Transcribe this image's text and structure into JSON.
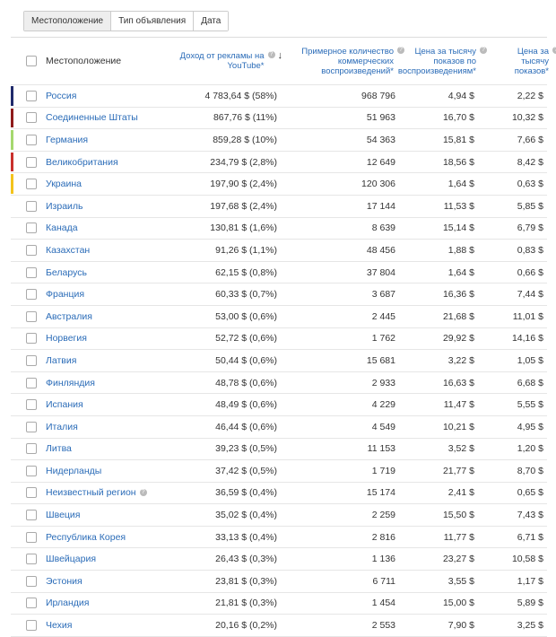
{
  "tabs": [
    "Местоположение",
    "Тип объявления",
    "Дата"
  ],
  "columns": [
    "Местоположение",
    "Доход от рекламы на YouTube*",
    "Примерное количество коммерческих воспроизведений*",
    "Цена за тысячу показов по воспроизведениям*",
    "Цена за тысячу показов*"
  ],
  "rows": [
    {
      "name": "Россия",
      "color": "#1f2a6b",
      "cells": [
        "4 783,64 $ (58%)",
        "968 796",
        "4,94 $",
        "2,22 $"
      ]
    },
    {
      "name": "Соединенные Штаты",
      "color": "#8e1b1b",
      "cells": [
        "867,76 $ (11%)",
        "51 963",
        "16,70 $",
        "10,32 $"
      ]
    },
    {
      "name": "Германия",
      "color": "#a5d86e",
      "cells": [
        "859,28 $ (10%)",
        "54 363",
        "15,81 $",
        "7,66 $"
      ]
    },
    {
      "name": "Великобритания",
      "color": "#c9302c",
      "cells": [
        "234,79 $ (2,8%)",
        "12 649",
        "18,56 $",
        "8,42 $"
      ]
    },
    {
      "name": "Украина",
      "color": "#f3c31c",
      "cells": [
        "197,90 $ (2,4%)",
        "120 306",
        "1,64 $",
        "0,63 $"
      ]
    },
    {
      "name": "Израиль",
      "cells": [
        "197,68 $ (2,4%)",
        "17 144",
        "11,53 $",
        "5,85 $"
      ]
    },
    {
      "name": "Канада",
      "cells": [
        "130,81 $ (1,6%)",
        "8 639",
        "15,14 $",
        "6,79 $"
      ]
    },
    {
      "name": "Казахстан",
      "cells": [
        "91,26 $ (1,1%)",
        "48 456",
        "1,88 $",
        "0,83 $"
      ]
    },
    {
      "name": "Беларусь",
      "cells": [
        "62,15 $ (0,8%)",
        "37 804",
        "1,64 $",
        "0,66 $"
      ]
    },
    {
      "name": "Франция",
      "cells": [
        "60,33 $ (0,7%)",
        "3 687",
        "16,36 $",
        "7,44 $"
      ]
    },
    {
      "name": "Австралия",
      "cells": [
        "53,00 $ (0,6%)",
        "2 445",
        "21,68 $",
        "11,01 $"
      ]
    },
    {
      "name": "Норвегия",
      "cells": [
        "52,72 $ (0,6%)",
        "1 762",
        "29,92 $",
        "14,16 $"
      ]
    },
    {
      "name": "Латвия",
      "cells": [
        "50,44 $ (0,6%)",
        "15 681",
        "3,22 $",
        "1,05 $"
      ]
    },
    {
      "name": "Финляндия",
      "cells": [
        "48,78 $ (0,6%)",
        "2 933",
        "16,63 $",
        "6,68 $"
      ]
    },
    {
      "name": "Испания",
      "cells": [
        "48,49 $ (0,6%)",
        "4 229",
        "11,47 $",
        "5,55 $"
      ]
    },
    {
      "name": "Италия",
      "cells": [
        "46,44 $ (0,6%)",
        "4 549",
        "10,21 $",
        "4,95 $"
      ]
    },
    {
      "name": "Литва",
      "cells": [
        "39,23 $ (0,5%)",
        "11 153",
        "3,52 $",
        "1,20 $"
      ]
    },
    {
      "name": "Нидерланды",
      "cells": [
        "37,42 $ (0,5%)",
        "1 719",
        "21,77 $",
        "8,70 $"
      ]
    },
    {
      "name": "Неизвестный регион",
      "help": true,
      "cells": [
        "36,59 $ (0,4%)",
        "15 174",
        "2,41 $",
        "0,65 $"
      ]
    },
    {
      "name": "Швеция",
      "cells": [
        "35,02 $ (0,4%)",
        "2 259",
        "15,50 $",
        "7,43 $"
      ]
    },
    {
      "name": "Республика Корея",
      "cells": [
        "33,13 $ (0,4%)",
        "2 816",
        "11,77 $",
        "6,71 $"
      ]
    },
    {
      "name": "Швейцария",
      "cells": [
        "26,43 $ (0,3%)",
        "1 136",
        "23,27 $",
        "10,58 $"
      ]
    },
    {
      "name": "Эстония",
      "cells": [
        "23,81 $ (0,3%)",
        "6 711",
        "3,55 $",
        "1,17 $"
      ]
    },
    {
      "name": "Ирландия",
      "cells": [
        "21,81 $ (0,3%)",
        "1 454",
        "15,00 $",
        "5,89 $"
      ]
    },
    {
      "name": "Чехия",
      "cells": [
        "20,16 $ (0,2%)",
        "2 553",
        "7,90 $",
        "3,25 $"
      ]
    }
  ]
}
